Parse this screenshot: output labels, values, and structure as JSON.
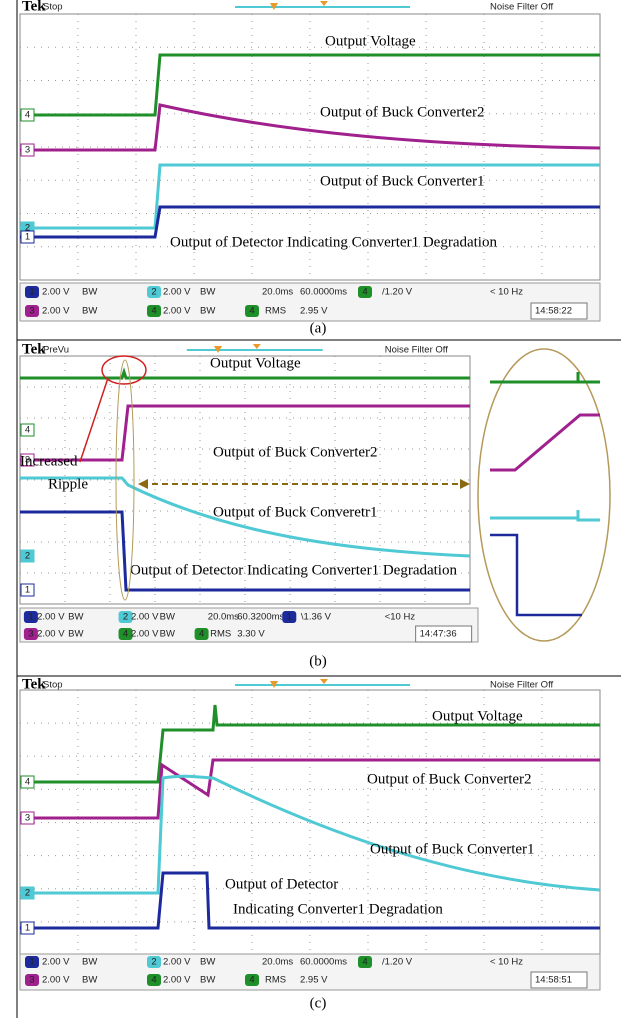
{
  "panels": [
    {
      "header": {
        "brand": "Tek",
        "status": "Stop",
        "filter": "Noise Filter Off"
      },
      "labels": [
        "Output Voltage",
        "Output of Buck Converter2",
        "Output of Buck Converter1",
        "Output of Detector Indicating Converter1 Degradation"
      ],
      "channels": [
        "4",
        "3",
        "2",
        "1"
      ],
      "readout": [
        [
          "1",
          "2.00 V",
          "BW",
          "2",
          "2.00 V",
          "BW",
          "20.0ms",
          "60.0000ms",
          "4",
          "/1.20 V",
          "< 10 Hz"
        ],
        [
          "3",
          "2.00 V",
          "BW",
          "4",
          "2.00 V",
          "BW",
          "4",
          "RMS",
          "2.95 V",
          "14:58:22"
        ]
      ],
      "caption": "(a)"
    },
    {
      "header": {
        "brand": "Tek",
        "status": "PreVu",
        "filter": "Noise Filter Off"
      },
      "labels": [
        "Output Voltage",
        "Increased",
        "Ripple",
        "Output of Buck Converter2",
        "Output of Buck Converetr1",
        "Output of Detector Indicating Converter1 Degradation"
      ],
      "channels": [
        "4",
        "3",
        "2",
        "1"
      ],
      "readout": [
        [
          "1",
          "2.00 V",
          "BW",
          "2",
          "2.00 V",
          "BW",
          "20.0ms",
          "60.3200ms",
          "1",
          "\\1.36 V",
          "<10 Hz"
        ],
        [
          "3",
          "2.00 V",
          "BW",
          "4",
          "2.00 V",
          "BW",
          "4",
          "RMS",
          "3.30 V",
          "14:47:36"
        ]
      ],
      "caption": "(b)"
    },
    {
      "header": {
        "brand": "Tek",
        "status": "Stop",
        "filter": "Noise Filter Off"
      },
      "labels": [
        "Output Voltage",
        "Output of Buck Converter2",
        "Output of Buck Converter1",
        "Output of Detector",
        "Indicating Converter1 Degradation"
      ],
      "channels": [
        "4",
        "3",
        "2",
        "1"
      ],
      "readout": [
        [
          "1",
          "2.00 V",
          "BW",
          "2",
          "2.00 V",
          "BW",
          "20.0ms",
          "60.0000ms",
          "4",
          "/1.20 V",
          "< 10 Hz"
        ],
        [
          "3",
          "2.00 V",
          "BW",
          "4",
          "2.00 V",
          "BW",
          "4",
          "RMS",
          "2.95 V",
          "14:58:51"
        ]
      ],
      "caption": "(c)"
    }
  ]
}
